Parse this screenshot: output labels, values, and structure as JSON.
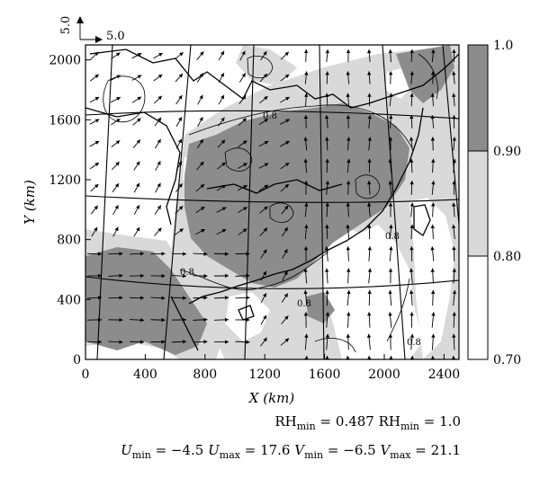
{
  "chart_data": {
    "type": "heatmap",
    "title": "",
    "xlabel": "X (km)",
    "ylabel": "Y (km)",
    "xlim": [
      0,
      2500
    ],
    "ylim": [
      0,
      2100
    ],
    "x_ticks": [
      "0",
      "400",
      "800",
      "1200",
      "1600",
      "2000",
      "2400"
    ],
    "y_ticks": [
      "0",
      "400",
      "800",
      "1200",
      "1600",
      "2000"
    ],
    "colorbar": {
      "levels": [
        "0.70",
        "0.80",
        "0.90",
        "1.0"
      ],
      "colors": [
        "#ffffff",
        "#d9d9d9",
        "#8c8c8c"
      ]
    },
    "contour_labels": [
      "0.8",
      "0.8",
      "0.8",
      "0.8",
      "0.8"
    ],
    "reference_vector": {
      "scale": "5.0",
      "vertical_label": "5.0"
    },
    "stats_line1": {
      "rhmin_a": "RH",
      "rhmin_a_sub": "min",
      "rhmin_a_val": " = 0.487 ",
      "rhmin_b": "RH",
      "rhmin_b_sub": "min",
      "rhmin_b_val": " = 1.0"
    },
    "stats_line2": {
      "umin": "U",
      "umin_sub": "min",
      "umin_val": " = −4.5 ",
      "umax": "U",
      "umax_sub": "max",
      "umax_val": " = 17.6 ",
      "vmin": "V",
      "vmin_sub": "min",
      "vmin_val": " = −6.5 ",
      "vmax": "V",
      "vmax_sub": "max",
      "vmax_val": " = 21.1"
    }
  }
}
